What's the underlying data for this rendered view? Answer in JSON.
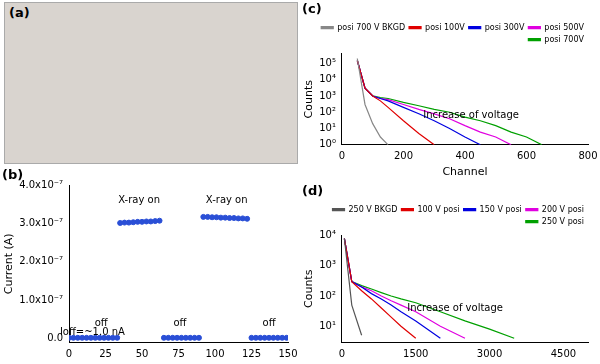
{
  "chart_data": [
    {
      "type": "photo",
      "title": "(a)"
    },
    {
      "type": "scatter",
      "title": "(b)",
      "y_label": "Current (A)",
      "x": [
        0,
        3,
        6,
        9,
        12,
        15,
        18,
        21,
        24,
        27,
        30,
        33,
        35,
        38,
        41,
        44,
        47,
        50,
        53,
        56,
        59,
        62,
        65,
        68,
        71,
        74,
        77,
        80,
        83,
        86,
        89,
        92,
        95,
        98,
        101,
        104,
        107,
        110,
        113,
        116,
        119,
        122,
        125,
        128,
        131,
        134,
        137,
        140,
        143,
        146,
        149
      ],
      "series": [
        {
          "color": "#2a4fd6",
          "marker": "circle",
          "values": [
            1e-09,
            1e-09,
            1e-09,
            1e-09,
            1e-09,
            1e-09,
            1e-09,
            1e-09,
            1e-09,
            1e-09,
            1e-09,
            1e-09,
            3.02e-07,
            3.03e-07,
            3.03e-07,
            3.04e-07,
            3.05e-07,
            3.05e-07,
            3.06e-07,
            3.06e-07,
            3.07e-07,
            3.08e-07,
            1e-09,
            1e-09,
            1e-09,
            1e-09,
            1e-09,
            1e-09,
            1e-09,
            1e-09,
            1e-09,
            3.18e-07,
            3.18e-07,
            3.17e-07,
            3.17e-07,
            3.16e-07,
            3.16e-07,
            3.15e-07,
            3.15e-07,
            3.14e-07,
            3.14e-07,
            3.13e-07,
            1e-09,
            1e-09,
            1e-09,
            1e-09,
            1e-09,
            1e-09,
            1e-09,
            1e-09,
            1e-09
          ]
        }
      ],
      "xlim": [
        0,
        150
      ],
      "xticks": [
        0,
        25,
        50,
        75,
        100,
        125,
        150
      ],
      "ylim": [
        -1e-08,
        4e-07
      ],
      "yticks": [
        {
          "value": 0,
          "label": "0.0"
        },
        {
          "value": 1e-07,
          "label": "1.0x10⁻⁷"
        },
        {
          "value": 2e-07,
          "label": "2.0x10⁻⁷"
        },
        {
          "value": 3e-07,
          "label": "3.0x10⁻⁷"
        },
        {
          "value": 4e-07,
          "label": "4.0x10⁻⁷"
        }
      ],
      "grid": false,
      "annotations": [
        {
          "text": "X-ray on",
          "x": 48,
          "y": 3.6e-07
        },
        {
          "text": "X-ray on",
          "x": 108,
          "y": 3.6e-07
        },
        {
          "text": "off",
          "x": 22,
          "y": 4e-08
        },
        {
          "text": "off",
          "x": 76,
          "y": 4e-08
        },
        {
          "text": "off",
          "x": 137,
          "y": 4e-08
        },
        {
          "text": "Ioff=~1.0 nA",
          "x": 16,
          "y": 1.4e-08
        }
      ]
    },
    {
      "type": "line",
      "title": "(c)",
      "x_label": "Channel",
      "y_label": "Counts",
      "log": "y",
      "x": [
        50,
        75,
        100,
        125,
        150,
        200,
        250,
        300,
        350,
        400,
        450,
        500,
        550,
        600,
        650
      ],
      "series": [
        {
          "name": "posi 700 V BKGD",
          "color": "#888888",
          "values": [
            200000,
            300,
            20,
            3,
            1,
            null,
            null,
            null,
            null,
            null,
            null,
            null,
            null,
            null,
            null
          ]
        },
        {
          "name": "posi 100V",
          "color": "#e00000",
          "values": [
            150000,
            3000,
            1000,
            500,
            200,
            30,
            5,
            1,
            null,
            null,
            null,
            null,
            null,
            null,
            null
          ]
        },
        {
          "name": "posi 300V",
          "color": "#0000e0",
          "values": [
            150000,
            3000,
            1000,
            700,
            500,
            200,
            80,
            30,
            10,
            3,
            1,
            null,
            null,
            null,
            null
          ]
        },
        {
          "name": "posi 500V",
          "color": "#e000e0",
          "values": [
            150000,
            3000,
            1000,
            700,
            600,
            300,
            150,
            80,
            40,
            15,
            6,
            3,
            1,
            null,
            null
          ]
        },
        {
          "name": "posi 700V",
          "color": "#00a000",
          "values": [
            150000,
            3000,
            1000,
            800,
            700,
            400,
            250,
            150,
            100,
            50,
            30,
            15,
            6,
            3,
            1
          ]
        }
      ],
      "xlim": [
        0,
        800
      ],
      "xticks": [
        0,
        200,
        400,
        600,
        800
      ],
      "ylim": [
        1,
        400000
      ],
      "yticks": [
        {
          "value": 1,
          "label": "10⁰"
        },
        {
          "value": 10,
          "label": "10¹"
        },
        {
          "value": 100,
          "label": "10²"
        },
        {
          "value": 1000,
          "label": "10³"
        },
        {
          "value": 10000,
          "label": "10⁴"
        },
        {
          "value": 100000,
          "label": "10⁵"
        }
      ],
      "grid": false,
      "legend": "upper right",
      "annotations": [
        {
          "text": "Increase of voltage",
          "x": 420,
          "y": 60
        }
      ]
    },
    {
      "type": "line",
      "title": "(d)",
      "y_label": "Counts",
      "log": "y",
      "x": [
        50,
        200,
        400,
        600,
        800,
        1000,
        1200,
        1500,
        2000,
        2500,
        3000,
        3500
      ],
      "series": [
        {
          "name": "250 V BKGD",
          "color": "#555555",
          "values": [
            8000,
            50,
            5,
            null,
            null,
            null,
            null,
            null,
            null,
            null,
            null,
            null
          ]
        },
        {
          "name": "100 V posi",
          "color": "#e00000",
          "values": [
            8000,
            300,
            150,
            80,
            40,
            20,
            10,
            4,
            null,
            null,
            null,
            null
          ]
        },
        {
          "name": "150 V posi",
          "color": "#0000e0",
          "values": [
            8000,
            300,
            200,
            120,
            80,
            50,
            30,
            15,
            4,
            null,
            null,
            null
          ]
        },
        {
          "name": "200 V posi",
          "color": "#e000e0",
          "values": [
            8000,
            300,
            200,
            150,
            100,
            70,
            50,
            30,
            10,
            4,
            null,
            null
          ]
        },
        {
          "name": "250 V posi",
          "color": "#00a000",
          "values": [
            8000,
            300,
            220,
            170,
            130,
            100,
            80,
            60,
            30,
            15,
            8,
            4
          ]
        }
      ],
      "xlim": [
        0,
        5000
      ],
      "xticks": [
        0,
        1500,
        3000,
        4500
      ],
      "ylim": [
        3,
        10000
      ],
      "yticks": [
        {
          "value": 10,
          "label": "10¹"
        },
        {
          "value": 100,
          "label": "10²"
        },
        {
          "value": 1000,
          "label": "10³"
        },
        {
          "value": 10000,
          "label": "10⁴"
        }
      ],
      "grid": false,
      "legend": "upper right",
      "annotations": [
        {
          "text": "Increase of voltage",
          "x": 2300,
          "y": 40
        }
      ]
    }
  ]
}
